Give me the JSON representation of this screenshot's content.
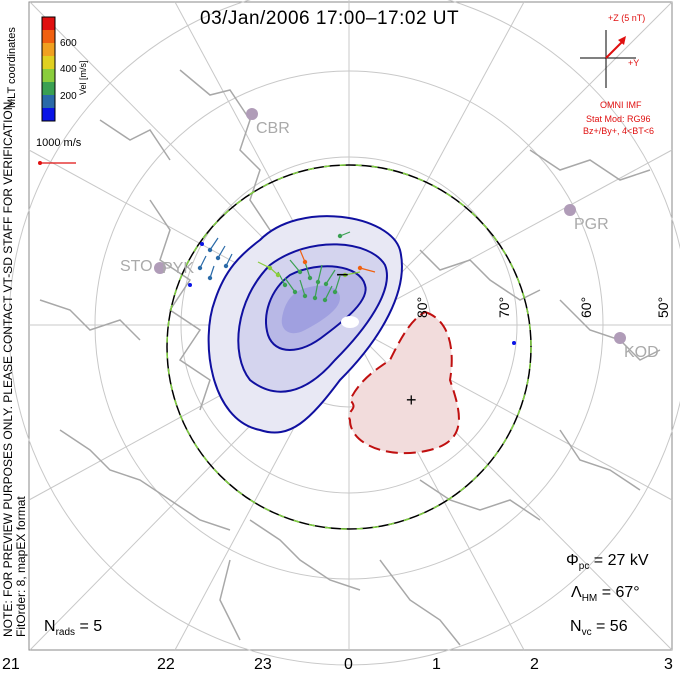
{
  "title": "03/Jan/2006 17:00–17:02 UT",
  "side_note_1": "NOTE: FOR PREVIEW PURPOSES ONLY. PLEASE CONTACT VT-SD STAFF FOR VERIFICATION.",
  "side_note_2": "FitOrder: 8, mapEX format",
  "coords_label": "MLT coordinates",
  "colorbar": {
    "label": "Vel [m/s]",
    "ticks": [
      "600",
      "400",
      "200"
    ],
    "colors": [
      "#0a14e6",
      "#2a6aa8",
      "#3aa052",
      "#8acd3c",
      "#e0d020",
      "#f0a020",
      "#f06010",
      "#e01010"
    ]
  },
  "reference_vector": "1000 m/s",
  "imf": {
    "z_label": "+Z (5 nT)",
    "y_label": "+Y",
    "source": "OMNI IMF",
    "stat_model": "Stat Mod: RG96",
    "condition": "Bz+/By+, 4<BT<6"
  },
  "stations": [
    "CBR",
    "STO",
    "PYK",
    "PGR",
    "KOD"
  ],
  "latitude_labels": [
    "80°",
    "70°",
    "60°",
    "50°"
  ],
  "mlt_labels": [
    "21",
    "22",
    "23",
    "0",
    "1",
    "2",
    "3"
  ],
  "min_marker": "−",
  "max_marker": "+",
  "stats": {
    "nrads_label": "N",
    "nrads_sub": "rads",
    "nrads_value": "= 5",
    "phi_label": "Φ",
    "phi_sub": "pc",
    "phi_value": "= 27 kV",
    "lambda_label": "Λ",
    "lambda_sub": "HM",
    "lambda_value": "= 67°",
    "nvc_label": "N",
    "nvc_sub": "vc",
    "nvc_value": "= 56"
  },
  "colors": {
    "positive_cell": "#1010a0",
    "negative_cell": "#c01010",
    "hm_boundary": "#000000",
    "boundary_dash": "#80d040",
    "grid": "#c8c8c8",
    "coast": "#a8a8a8"
  }
}
